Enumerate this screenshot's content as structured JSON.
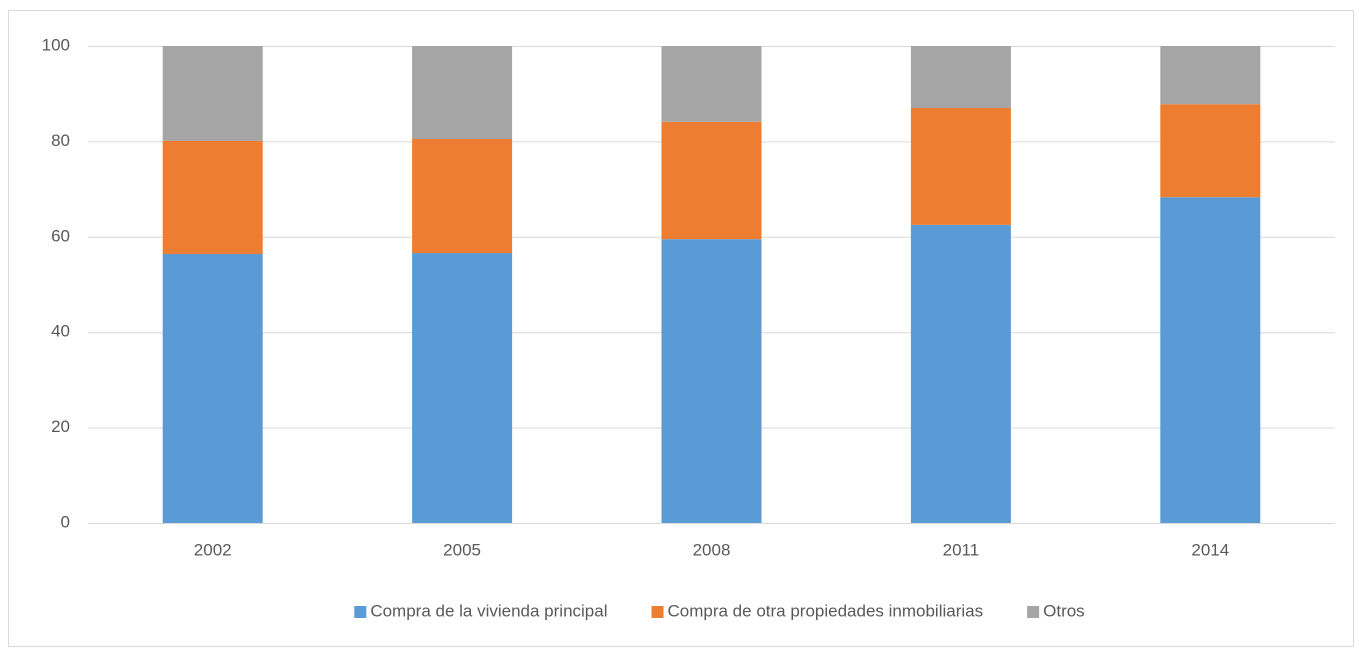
{
  "chart_data": {
    "type": "bar",
    "stacked": true,
    "categories": [
      "2002",
      "2005",
      "2008",
      "2011",
      "2014"
    ],
    "series": [
      {
        "name": "Compra de la vivienda principal",
        "color": "#5b9bd5",
        "values": [
          56.4,
          56.6,
          59.5,
          62.5,
          68.3
        ]
      },
      {
        "name": "Compra de otra propiedades inmobiliarias",
        "color": "#ed7d31",
        "values": [
          23.7,
          23.9,
          24.6,
          24.5,
          19.5
        ]
      },
      {
        "name": "Otros",
        "color": "#a5a5a5",
        "values": [
          19.9,
          19.5,
          15.9,
          13.0,
          12.2
        ]
      }
    ],
    "ylim": [
      0,
      100
    ],
    "yticks": [
      0,
      20,
      40,
      60,
      80,
      100
    ],
    "grid": true,
    "legend": "bottom"
  }
}
